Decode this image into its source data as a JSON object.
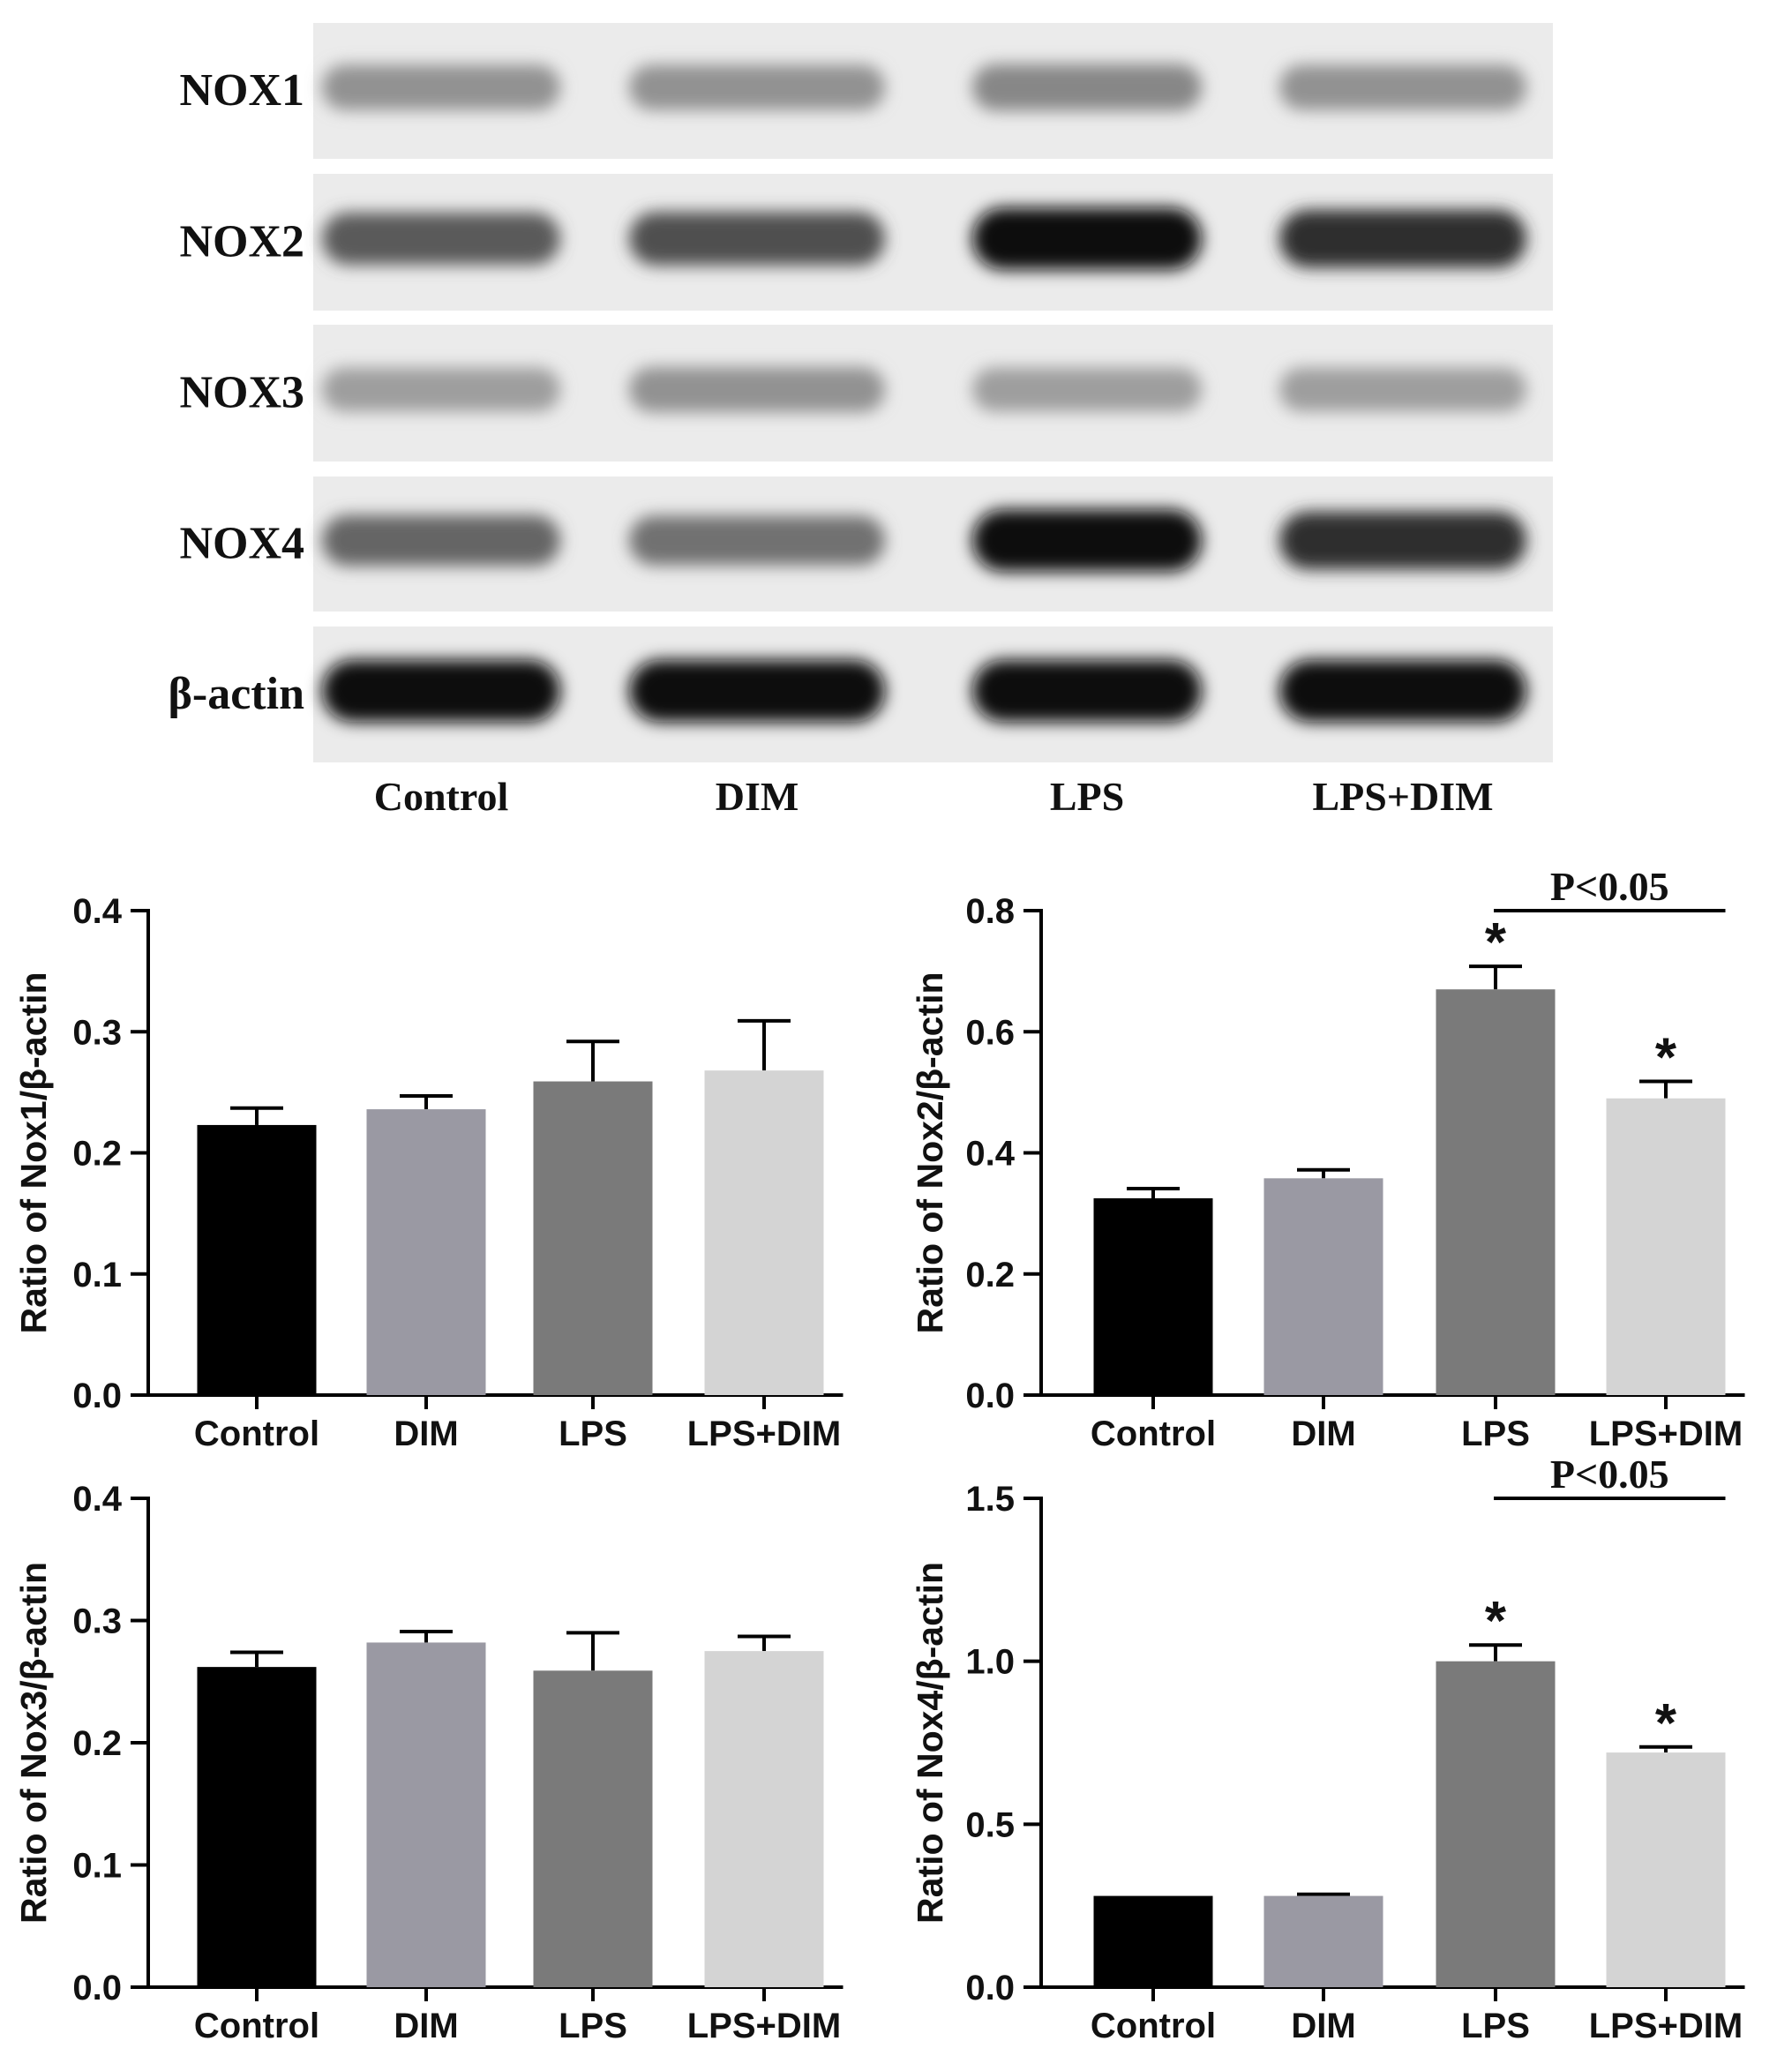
{
  "blot": {
    "proteins": [
      "NOX1",
      "NOX2",
      "NOX3",
      "NOX4",
      "β-actin"
    ],
    "lanes": [
      "Control",
      "DIM",
      "LPS",
      "LPS+DIM"
    ],
    "band_intensity": [
      [
        0.35,
        0.35,
        0.4,
        0.35
      ],
      [
        0.6,
        0.65,
        0.95,
        0.8
      ],
      [
        0.3,
        0.35,
        0.3,
        0.3
      ],
      [
        0.55,
        0.5,
        0.95,
        0.8
      ],
      [
        0.95,
        0.95,
        0.95,
        0.95
      ]
    ]
  },
  "colors": {
    "Control": "#000000",
    "DIM": "#9a99a3",
    "LPS": "#7a7a7a",
    "LPS+DIM": "#d4d4d4"
  },
  "chart_data": [
    {
      "type": "bar",
      "categories": [
        "Control",
        "DIM",
        "LPS",
        "LPS+DIM"
      ],
      "values": [
        0.223,
        0.236,
        0.259,
        0.268
      ],
      "errors": [
        0.014,
        0.011,
        0.033,
        0.041
      ],
      "ylabel": "Ratio of Nox1/β-actin",
      "ylim": [
        0,
        0.4
      ],
      "yticks": [
        "0.0",
        "0.1",
        "0.2",
        "0.3",
        "0.4"
      ],
      "stars": [
        false,
        false,
        false,
        false
      ],
      "pvalue_text": ""
    },
    {
      "type": "bar",
      "categories": [
        "Control",
        "DIM",
        "LPS",
        "LPS+DIM"
      ],
      "values": [
        0.325,
        0.358,
        0.67,
        0.49
      ],
      "errors": [
        0.016,
        0.014,
        0.038,
        0.028
      ],
      "ylabel": "Ratio of Nox2/β-actin",
      "ylim": [
        0,
        0.8
      ],
      "yticks": [
        "0.0",
        "0.2",
        "0.4",
        "0.6",
        "0.8"
      ],
      "stars": [
        false,
        false,
        true,
        true
      ],
      "pvalue_text": "P<0.05"
    },
    {
      "type": "bar",
      "categories": [
        "Control",
        "DIM",
        "LPS",
        "LPS+DIM"
      ],
      "values": [
        0.262,
        0.282,
        0.259,
        0.275
      ],
      "errors": [
        0.012,
        0.009,
        0.031,
        0.012
      ],
      "ylabel": "Ratio of Nox3/β-actin",
      "ylim": [
        0,
        0.4
      ],
      "yticks": [
        "0.0",
        "0.1",
        "0.2",
        "0.3",
        "0.4"
      ],
      "stars": [
        false,
        false,
        false,
        false
      ],
      "pvalue_text": ""
    },
    {
      "type": "bar",
      "categories": [
        "Control",
        "DIM",
        "LPS",
        "LPS+DIM"
      ],
      "values": [
        0.28,
        0.28,
        1.0,
        0.72
      ],
      "errors": [
        0.0,
        0.005,
        0.05,
        0.017
      ],
      "ylabel": "Ratio of Nox4/β-actin",
      "ylim": [
        0,
        1.5
      ],
      "yticks": [
        "0.0",
        "0.5",
        "1.0",
        "1.5"
      ],
      "stars": [
        false,
        false,
        true,
        true
      ],
      "pvalue_text": "P<0.05"
    }
  ]
}
